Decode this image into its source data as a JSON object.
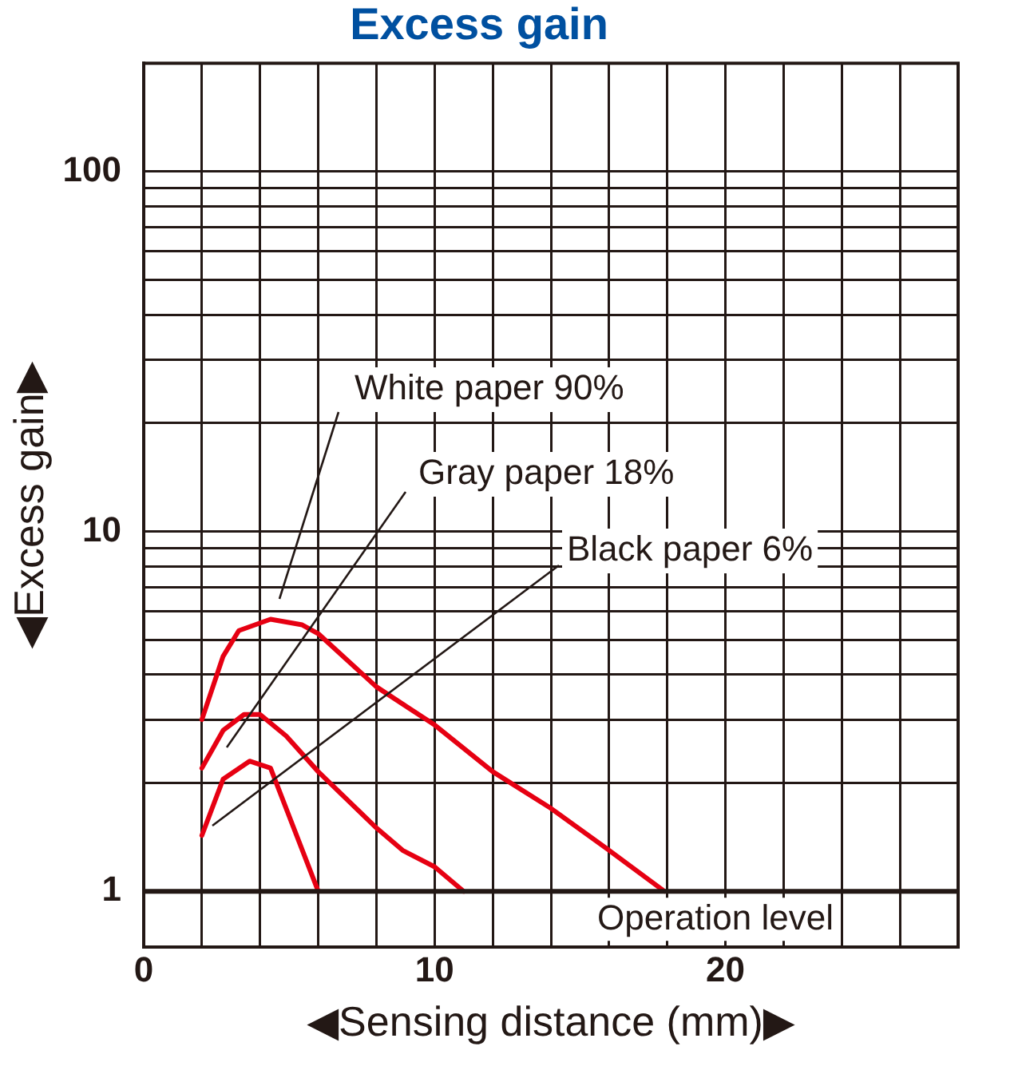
{
  "chart_data": {
    "type": "line",
    "title": "Excess gain",
    "xlabel": "◀Sensing distance (mm)▶",
    "ylabel": "◀Excess gain▶",
    "log": "y",
    "xlim": [
      0,
      28
    ],
    "xticks": [
      0,
      {
        "value": 2,
        "label": null
      },
      {
        "value": 4,
        "label": null
      },
      {
        "value": 6,
        "label": null
      },
      {
        "value": 8,
        "label": null
      },
      10,
      {
        "value": 12,
        "label": null
      },
      {
        "value": 14,
        "label": null
      },
      {
        "value": 16,
        "label": null
      },
      {
        "value": 18,
        "label": null
      },
      20,
      {
        "value": 22,
        "label": null
      },
      {
        "value": 24,
        "label": null
      },
      {
        "value": 26,
        "label": null
      },
      {
        "value": 28,
        "label": null
      }
    ],
    "ylim": [
      0.7,
      200
    ],
    "yticks": [
      1,
      {
        "value": 2,
        "label": null
      },
      {
        "value": 3,
        "label": null
      },
      {
        "value": 4,
        "label": null
      },
      {
        "value": 5,
        "label": null
      },
      {
        "value": 6,
        "label": null
      },
      {
        "value": 7,
        "label": null
      },
      {
        "value": 8,
        "label": null
      },
      {
        "value": 9,
        "label": null
      },
      10,
      {
        "value": 20,
        "label": null
      },
      {
        "value": 30,
        "label": null
      },
      {
        "value": 40,
        "label": null
      },
      {
        "value": 50,
        "label": null
      },
      {
        "value": 60,
        "label": null
      },
      {
        "value": 70,
        "label": null
      },
      {
        "value": 80,
        "label": null
      },
      {
        "value": 90,
        "label": null
      },
      100
    ],
    "grid": true,
    "legend": false,
    "marker": "none",
    "line_style": "solid",
    "series": [
      {
        "color": "#e60012",
        "x": [
          2,
          2.73,
          3.27,
          4.36,
          5.45,
          6,
          8,
          10,
          12,
          14,
          16,
          17.9
        ],
        "values": [
          3.0,
          4.5,
          5.3,
          5.7,
          5.5,
          5.2,
          3.7,
          2.9,
          2.15,
          1.7,
          1.3,
          1
        ]
      },
      {
        "color": "#e60012",
        "x": [
          2,
          2.73,
          3.45,
          4,
          4.9,
          6,
          8,
          8.9,
          10,
          11
        ],
        "values": [
          2.2,
          2.8,
          3.1,
          3.1,
          2.7,
          2.15,
          1.5,
          1.3,
          1.17,
          1
        ]
      },
      {
        "color": "#e60012",
        "x": [
          2,
          2.73,
          3.64,
          4.36,
          6
        ],
        "values": [
          1.43,
          2.05,
          2.3,
          2.2,
          1
        ]
      }
    ],
    "annotations": [
      "White paper 90%",
      "Gray paper 18%",
      "Black paper 6%"
    ],
    "ref_lines": [
      {
        "axis": "y",
        "value": 1,
        "label": "Operation level",
        "color": "#231815"
      }
    ]
  }
}
